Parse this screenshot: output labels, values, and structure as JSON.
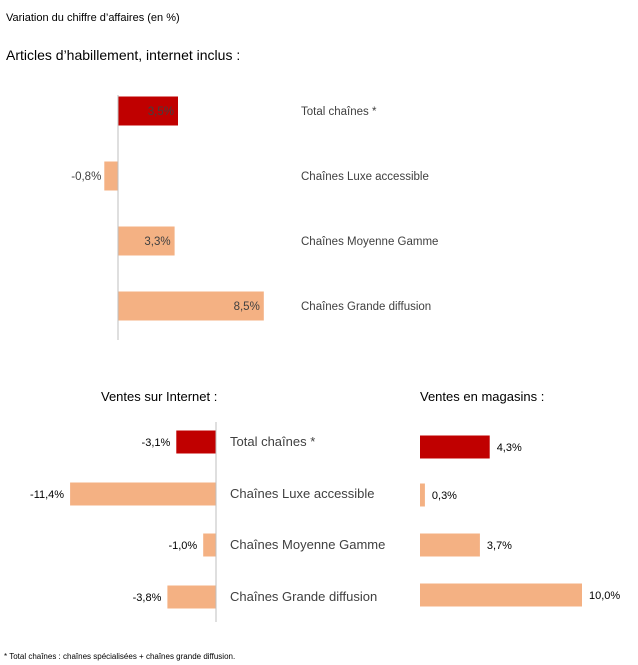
{
  "caption": "Variation du chiffre d’affaires (en %)",
  "section_title": "Articles d’habillement, internet inclus :",
  "footnote": "* Total chaînes : chaînes spécialisées + chaînes grande diffusion.",
  "colors": {
    "total": "#c00000",
    "other": "#f4b183",
    "axis": "#bfbfbf",
    "label": "#404040"
  },
  "chart_data": [
    {
      "type": "bar",
      "orientation": "horizontal",
      "title": "Articles d’habillement, internet inclus :",
      "categories": [
        "Total chaînes *",
        "Chaînes Luxe accessible",
        "Chaînes Moyenne Gamme",
        "Chaînes Grande diffusion"
      ],
      "values": [
        3.5,
        -0.8,
        3.3,
        8.5
      ],
      "labels": [
        "3,5%",
        "-0,8%",
        "3,3%",
        "8,5%"
      ],
      "highlight_index": 0
    },
    {
      "type": "bar",
      "orientation": "horizontal",
      "title": "Ventes sur Internet :",
      "categories": [
        "Total chaînes *",
        "Chaînes Luxe accessible",
        "Chaînes Moyenne Gamme",
        "Chaînes Grande diffusion"
      ],
      "values": [
        -3.1,
        -11.4,
        -1.0,
        -3.8
      ],
      "labels": [
        "-3,1%",
        "-11,4%",
        "-1,0%",
        "-3,8%"
      ],
      "highlight_index": 0
    },
    {
      "type": "bar",
      "orientation": "horizontal",
      "title": "Ventes en magasins :",
      "categories": [
        "Total chaînes *",
        "Chaînes Luxe accessible",
        "Chaînes Moyenne Gamme",
        "Chaînes Grande diffusion"
      ],
      "values": [
        4.3,
        0.3,
        3.7,
        10.0
      ],
      "labels": [
        "4,3%",
        "0,3%",
        "3,7%",
        "10,0%"
      ],
      "highlight_index": 0
    }
  ]
}
